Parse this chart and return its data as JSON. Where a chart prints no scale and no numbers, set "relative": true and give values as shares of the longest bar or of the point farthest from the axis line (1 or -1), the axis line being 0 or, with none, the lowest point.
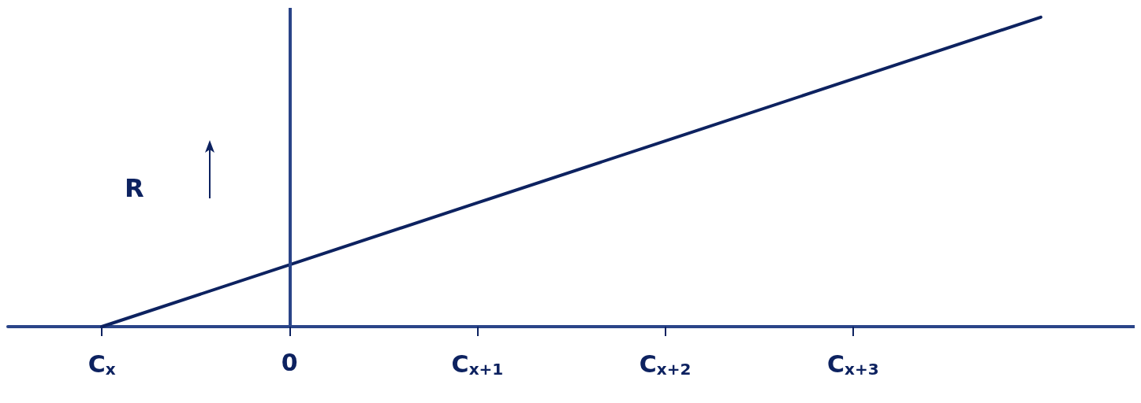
{
  "chart_data": {
    "type": "line",
    "relative": true,
    "ylabel": "R",
    "categories": [
      "C$_{x}$",
      "0",
      "C$_{x+1}$",
      "C$_{x+2}$",
      "C$_{x+3}$",
      null
    ],
    "values": [
      0,
      0.2,
      0.4,
      0.6,
      0.8,
      1
    ],
    "color": "#0d2260",
    "ref_lines": [
      {
        "axis": "x",
        "value": "0",
        "color": "#2a4488"
      }
    ],
    "grid": false,
    "marker": "none",
    "line_style": "solid"
  }
}
